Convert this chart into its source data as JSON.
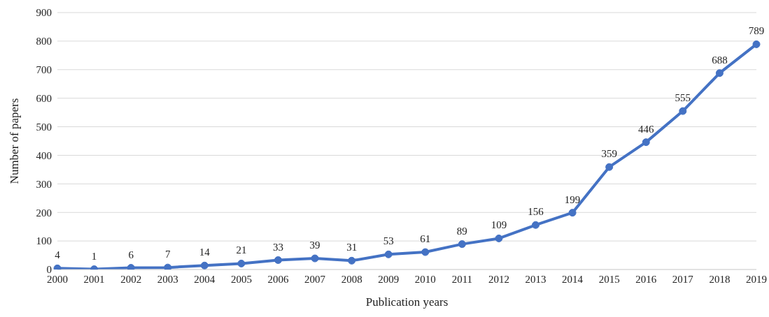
{
  "chart_data": {
    "type": "line",
    "xlabel": "Publication years",
    "ylabel": "Number of papers",
    "categories": [
      "2000",
      "2001",
      "2002",
      "2003",
      "2004",
      "2005",
      "2006",
      "2007",
      "2008",
      "2009",
      "2010",
      "2011",
      "2012",
      "2013",
      "2014",
      "2015",
      "2016",
      "2017",
      "2018",
      "2019"
    ],
    "series": [
      {
        "color": "#4472c4",
        "values": [
          4,
          1,
          6,
          7,
          14,
          21,
          33,
          39,
          31,
          53,
          61,
          89,
          109,
          156,
          199,
          359,
          446,
          555,
          688,
          789
        ]
      }
    ],
    "ylim": [
      0,
      900
    ],
    "yticks": [
      0,
      100,
      200,
      300,
      400,
      500,
      600,
      700,
      800,
      900
    ],
    "grid": "y",
    "marker": "circle",
    "line_style": "solid",
    "data_labels": true
  }
}
